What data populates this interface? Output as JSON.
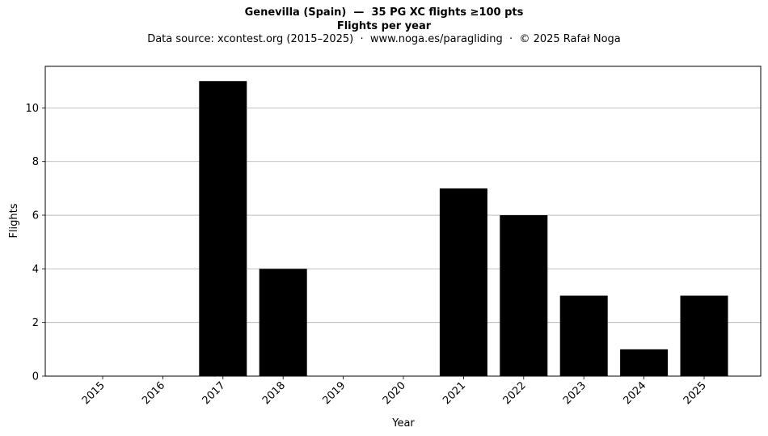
{
  "chart": {
    "title": "Genevilla (Spain)  —  35 PG XC flights ≥100 pts",
    "subtitle": "Flights per year",
    "caption": "Data source: xcontest.org (2015–2025)  ·  www.noga.es/paragliding  ·  © 2025 Rafał Noga"
  },
  "chart_data": {
    "type": "bar",
    "categories": [
      "2015",
      "2016",
      "2017",
      "2018",
      "2019",
      "2020",
      "2021",
      "2022",
      "2023",
      "2024",
      "2025"
    ],
    "values": [
      0,
      0,
      11,
      4,
      0,
      0,
      7,
      6,
      3,
      1,
      3
    ],
    "xlabel": "Year",
    "ylabel": "Flights",
    "ylim": [
      0,
      11.55
    ],
    "yticks": [
      0,
      2,
      4,
      6,
      8,
      10
    ],
    "grid": "y-major",
    "bar_color": "#000000",
    "grid_color": "#b0b0b0"
  }
}
